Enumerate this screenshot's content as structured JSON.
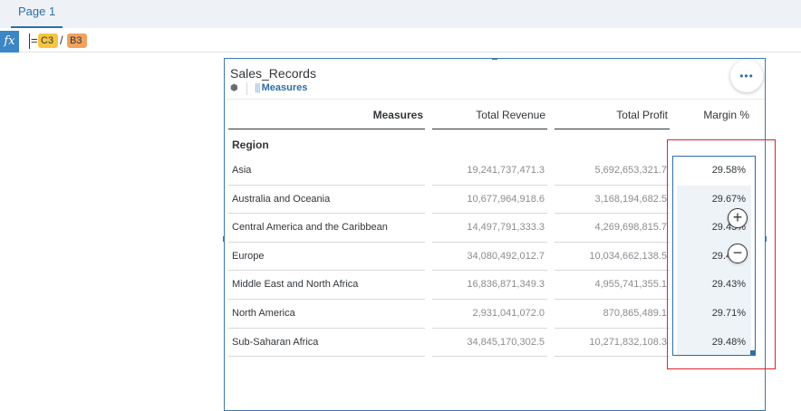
{
  "page_tabs": [
    {
      "label": "Page 1"
    }
  ],
  "formula": {
    "fx_label": "fx",
    "equals": "=",
    "operand1": "C3",
    "operator": "/",
    "operand2": "B3"
  },
  "widget": {
    "title": "Sales_Records",
    "measures_link": "Measures",
    "more_label": "•••"
  },
  "table": {
    "headers": {
      "measures": "Measures",
      "revenue": "Total Revenue",
      "profit": "Total Profit",
      "margin": "Margin %"
    },
    "dimension_label": "Region",
    "rows": [
      {
        "region": "Asia",
        "revenue": "19,241,737,471.3",
        "profit": "5,692,653,321.7",
        "margin": "29.58%"
      },
      {
        "region": "Australia and Oceania",
        "revenue": "10,677,964,918.6",
        "profit": "3,168,194,682.5",
        "margin": "29.67%"
      },
      {
        "region": "Central America and the Caribbean",
        "revenue": "14,497,791,333.3",
        "profit": "4,269,698,815.7",
        "margin": "29.45%"
      },
      {
        "region": "Europe",
        "revenue": "34,080,492,012.7",
        "profit": "10,034,662,138.5",
        "margin": "29.44%"
      },
      {
        "region": "Middle East and North Africa",
        "revenue": "16,836,871,349.3",
        "profit": "4,955,741,355.1",
        "margin": "29.43%"
      },
      {
        "region": "North America",
        "revenue": "2,931,041,072.0",
        "profit": "870,865,489.1",
        "margin": "29.71%"
      },
      {
        "region": "Sub-Saharan Africa",
        "revenue": "34,845,170,302.5",
        "profit": "10,271,832,108.3",
        "margin": "29.48%"
      }
    ]
  },
  "zoom": {
    "in_label": "+",
    "out_label": "−"
  },
  "colors": {
    "accent": "#2d6fa6",
    "highlight": "#e0222a",
    "token_c3": "#f5c542",
    "token_b3": "#f0a35e"
  }
}
